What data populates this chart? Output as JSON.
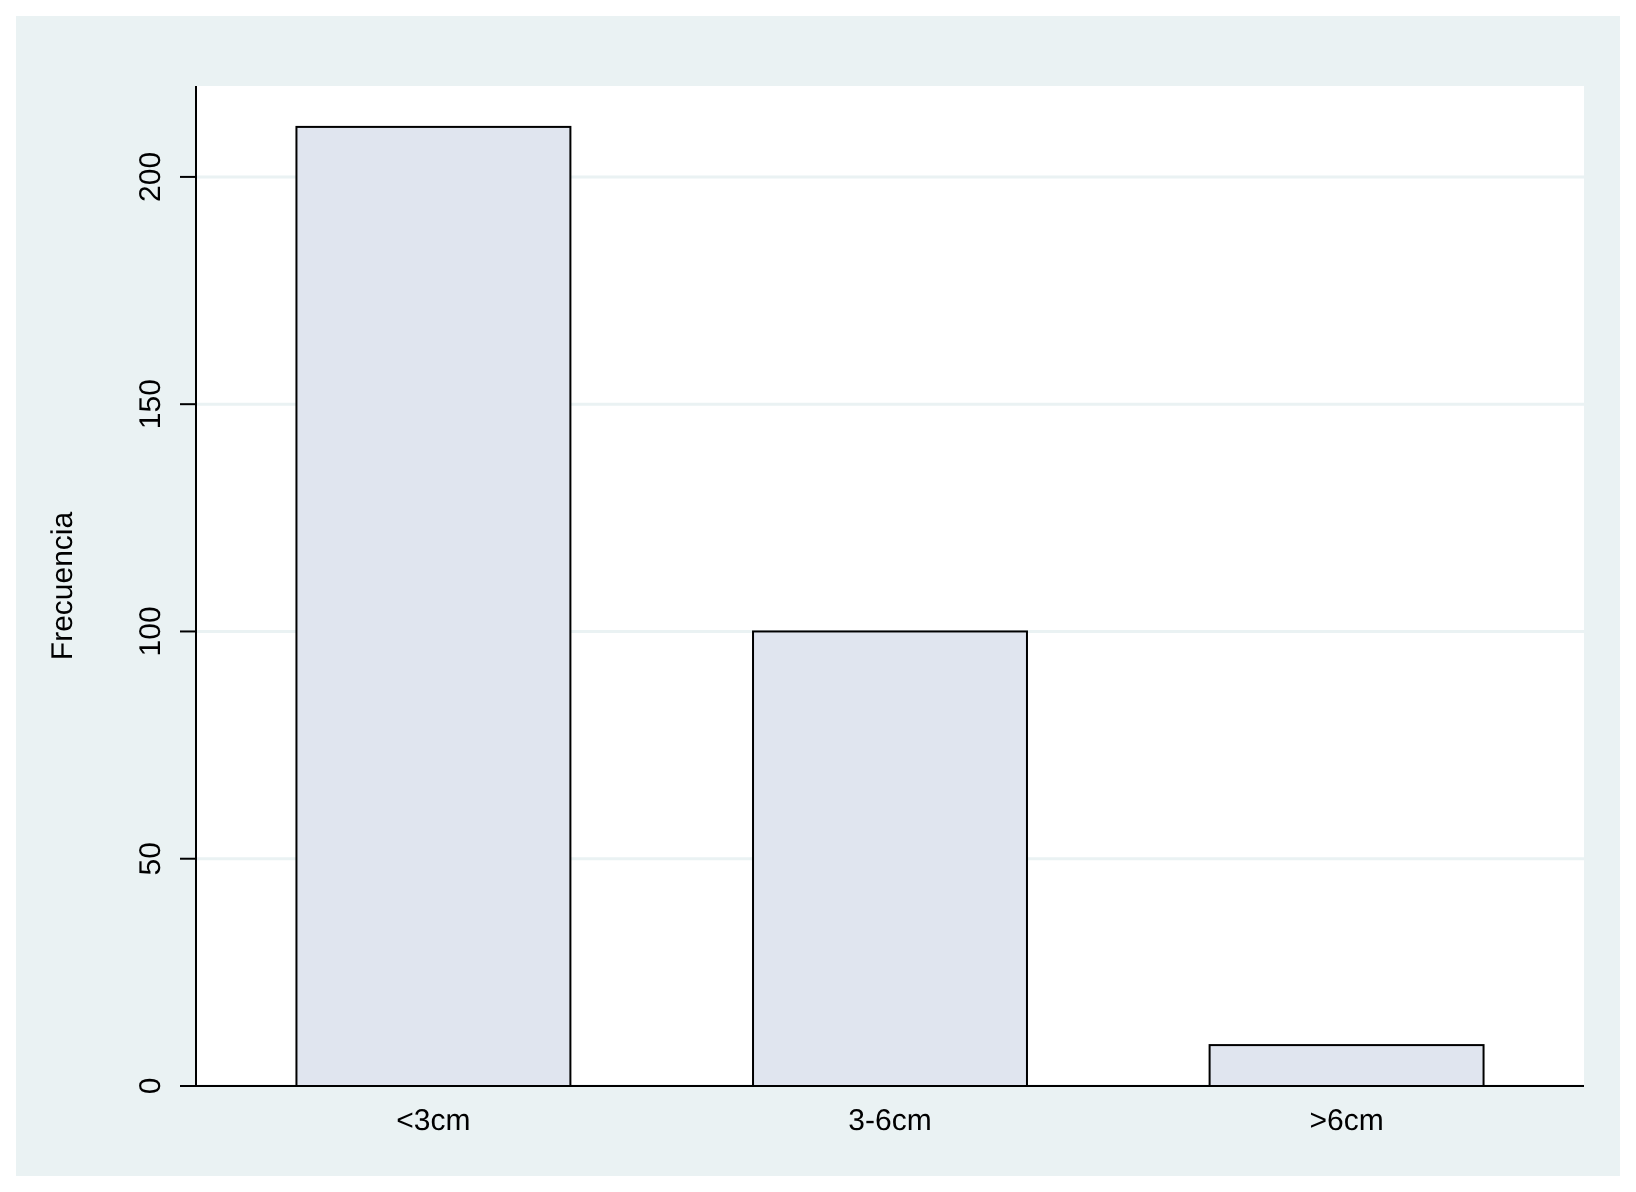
{
  "chart_data": {
    "type": "bar",
    "ylabel": "Frecuencia",
    "categories": [
      "<3cm",
      "3-6cm",
      ">6cm"
    ],
    "values": [
      211,
      100,
      9
    ],
    "color": "#e0e5ef",
    "ylim": [
      0,
      220
    ],
    "yticks": [
      0,
      50,
      100,
      150,
      200
    ],
    "grid": "y"
  }
}
